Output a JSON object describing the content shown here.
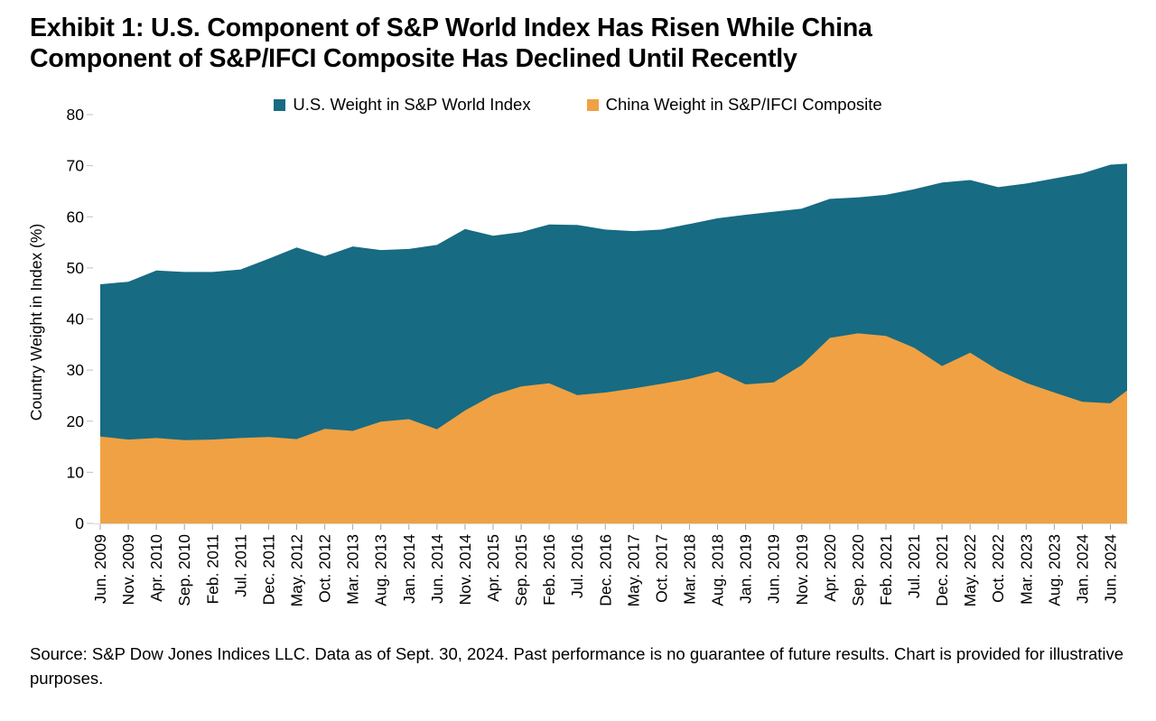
{
  "title": {
    "line1": "Exhibit 1: U.S. Component of S&P World Index Has Risen While China",
    "line2": "Component of S&P/IFCI Composite Has Declined Until Recently"
  },
  "legend": [
    {
      "label": "U.S. Weight in S&P World Index",
      "color": "#176b83"
    },
    {
      "label": "China Weight in S&P/IFCI Composite",
      "color": "#f0a143"
    }
  ],
  "source": {
    "text": "Source: S&P Dow Jones Indices LLC. Data as of Sept. 30, 2024. Past performance is no guarantee of future results. Chart is provided for illustrative purposes."
  },
  "chart_data": {
    "type": "area",
    "overlapping_series": true,
    "ylabel": "Country Weight in Index (%)",
    "ylim": [
      0,
      80
    ],
    "y_ticks": [
      0,
      10,
      20,
      30,
      40,
      50,
      60,
      70,
      80
    ],
    "grid": "off",
    "legend_position": "top-center",
    "x_labels": [
      "Jun. 2009",
      "Nov. 2009",
      "Apr. 2010",
      "Sep. 2010",
      "Feb. 2011",
      "Jul. 2011",
      "Dec. 2011",
      "May. 2012",
      "Oct. 2012",
      "Mar. 2013",
      "Aug. 2013",
      "Jan. 2014",
      "Jun. 2014",
      "Nov. 2014",
      "Apr. 2015",
      "Sep. 2015",
      "Feb. 2016",
      "Jul. 2016",
      "Dec. 2016",
      "May. 2017",
      "Oct. 2017",
      "Mar. 2018",
      "Aug. 2018",
      "Jan. 2019",
      "Jun. 2019",
      "Nov. 2019",
      "Apr. 2020",
      "Sep. 2020",
      "Feb. 2021",
      "Jul. 2021",
      "Dec. 2021",
      "May. 2022",
      "Oct. 2022",
      "Mar. 2023",
      "Aug. 2023",
      "Jan. 2024",
      "Jun. 2024"
    ],
    "series": [
      {
        "name": "U.S. Weight in S&P World Index",
        "color": "#176b83",
        "values": [
          46.8,
          47.3,
          49.5,
          49.2,
          49.2,
          49.7,
          51.8,
          54.0,
          52.3,
          54.2,
          53.5,
          53.7,
          54.5,
          57.6,
          56.3,
          57.0,
          58.5,
          58.4,
          57.5,
          57.2,
          57.5,
          58.6,
          59.7,
          60.4,
          61.0,
          61.6,
          63.5,
          63.8,
          64.3,
          65.4,
          66.7,
          67.2,
          65.8,
          66.5,
          67.5,
          68.5,
          70.2
        ],
        "end_value": 70.4
      },
      {
        "name": "China Weight in S&P/IFCI Composite",
        "color": "#f0a143",
        "values": [
          17.0,
          16.4,
          16.7,
          16.3,
          16.4,
          16.7,
          16.9,
          16.5,
          18.5,
          18.1,
          19.9,
          20.4,
          18.4,
          22.1,
          25.1,
          26.8,
          27.4,
          25.1,
          25.6,
          26.4,
          27.3,
          28.3,
          29.7,
          27.2,
          27.6,
          31.0,
          36.3,
          37.2,
          36.7,
          34.4,
          30.8,
          33.4,
          30.0,
          27.5,
          25.6,
          23.8,
          23.5
        ],
        "end_value": 26.0
      }
    ]
  }
}
